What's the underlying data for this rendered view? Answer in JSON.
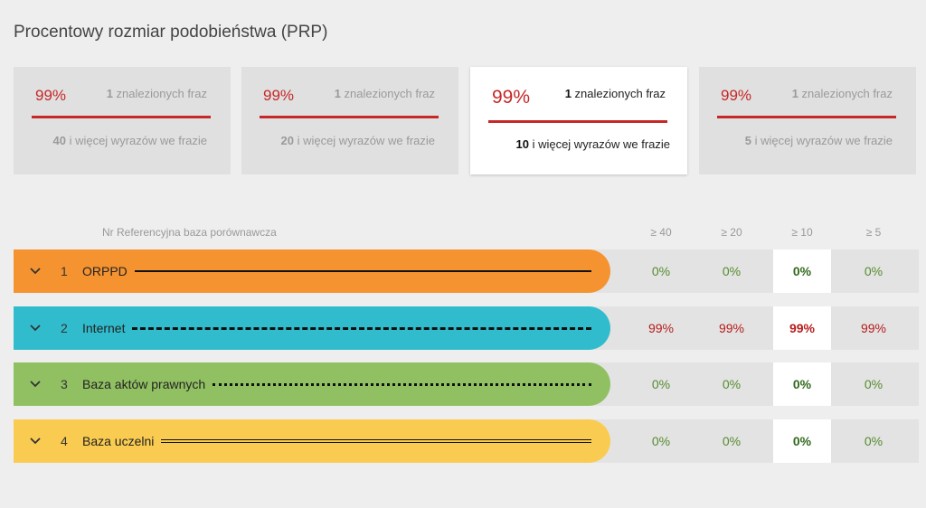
{
  "title": "Procentowy rozmiar podobieństwa (PRP)",
  "cards": [
    {
      "pct": "99%",
      "found_num": "1",
      "found_label": " znalezionych fraz",
      "words_num": "40",
      "words_label": " i więcej wyrazów we frazie",
      "active": false
    },
    {
      "pct": "99%",
      "found_num": "1",
      "found_label": " znalezionych fraz",
      "words_num": "20",
      "words_label": " i więcej wyrazów we frazie",
      "active": false
    },
    {
      "pct": "99%",
      "found_num": "1",
      "found_label": " znalezionych fraz",
      "words_num": "10",
      "words_label": " i więcej wyrazów we frazie",
      "active": true
    },
    {
      "pct": "99%",
      "found_num": "1",
      "found_label": " znalezionych fraz",
      "words_num": "5",
      "words_label": " i więcej wyrazów we frazie",
      "active": false
    }
  ],
  "table": {
    "header_label": "Nr Referencyjna baza porównawcza",
    "columns": [
      "≥ 40",
      "≥ 20",
      "≥ 10",
      "≥ 5"
    ],
    "active_column": 2,
    "rows": [
      {
        "num": "1",
        "name": "ORPPD",
        "color": "#f59331",
        "line": "solid",
        "values": [
          "0%",
          "0%",
          "0%",
          "0%"
        ],
        "tone": "green"
      },
      {
        "num": "2",
        "name": "Internet",
        "color": "#31bccd",
        "line": "dashed",
        "values": [
          "99%",
          "99%",
          "99%",
          "99%"
        ],
        "tone": "red"
      },
      {
        "num": "3",
        "name": "Baza aktów prawnych",
        "color": "#91c063",
        "line": "dotted",
        "values": [
          "0%",
          "0%",
          "0%",
          "0%"
        ],
        "tone": "green"
      },
      {
        "num": "4",
        "name": "Baza uczelni",
        "color": "#f9cb51",
        "line": "double",
        "values": [
          "0%",
          "0%",
          "0%",
          "0%"
        ],
        "tone": "green"
      }
    ]
  },
  "icons": {
    "expand": "chevron-down-icon"
  }
}
